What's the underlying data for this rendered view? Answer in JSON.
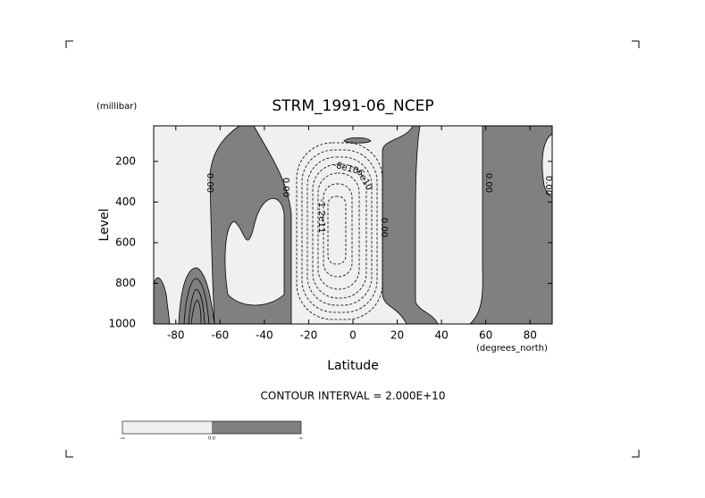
{
  "chart_data": {
    "type": "contour",
    "title": "STRM_1991-06_NCEP",
    "y_units": "(millibar)",
    "ylabel": "Level",
    "xlabel": "Latitude",
    "x_units": "(degrees_north)",
    "subtitle": "CONTOUR INTERVAL = 2.000E+10",
    "xlim": [
      -90,
      90
    ],
    "xticks": [
      -80,
      -60,
      -40,
      -20,
      0,
      20,
      40,
      60,
      80
    ],
    "ylim": [
      1000,
      25
    ],
    "yticks": [
      200,
      400,
      600,
      800,
      1000
    ],
    "fill_colors": [
      "#f0f0f0",
      "#808080"
    ],
    "annotations": [
      "0.00",
      "0.00",
      "0.00",
      "0.00",
      "0.00",
      "-8e10",
      "-6e10",
      "-1.2e11"
    ],
    "colorbar_labels": [
      "-∞",
      "0.0",
      "∞"
    ]
  }
}
